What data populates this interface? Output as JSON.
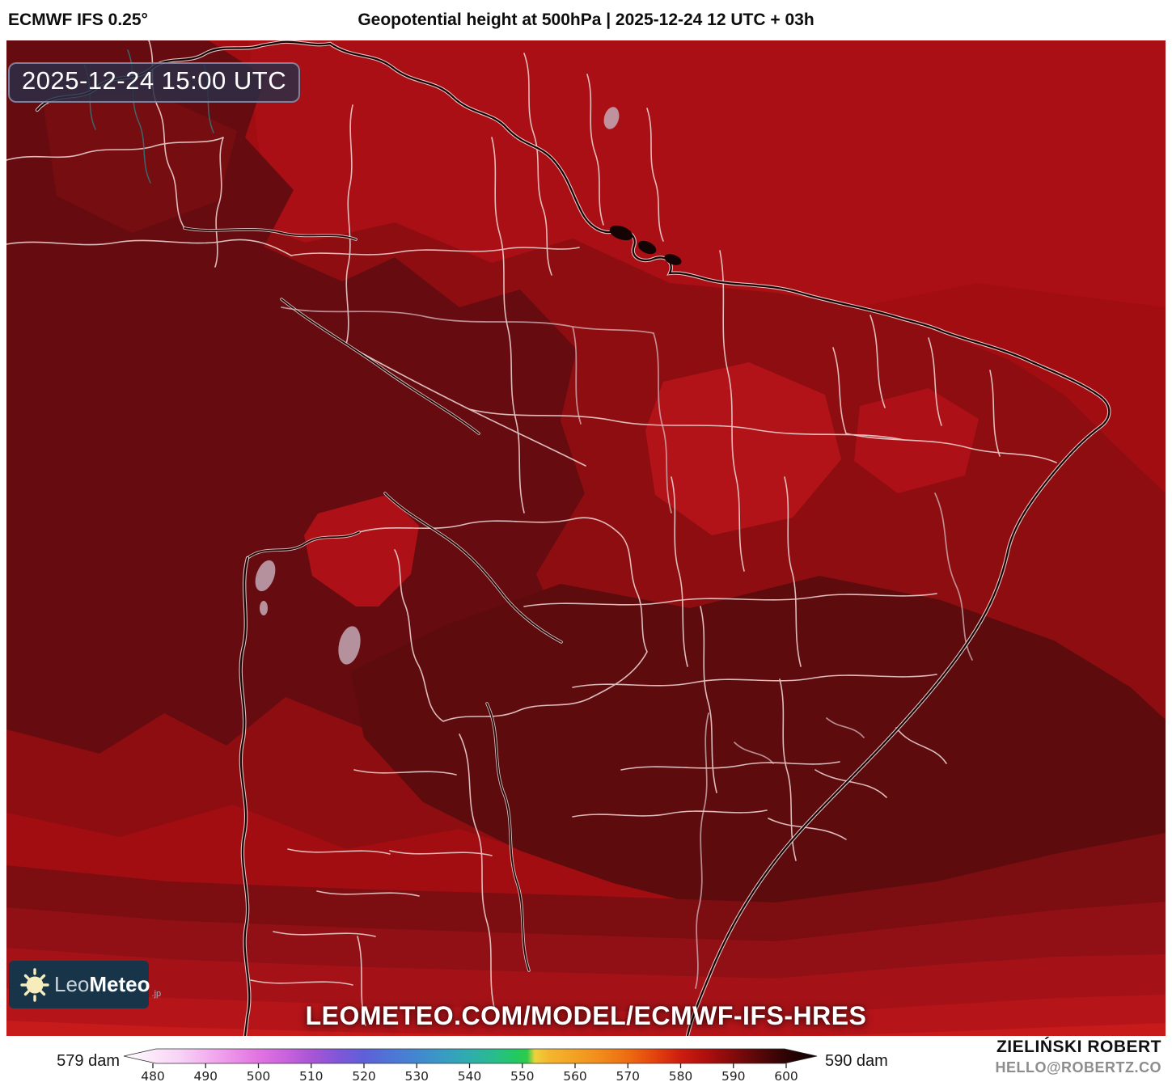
{
  "header": {
    "model": "ECMWF IFS 0.25°",
    "title": "Geopotential height at 500hPa | 2025-12-24 12 UTC + 03h"
  },
  "map": {
    "timestamp": "2025-12-24 15:00 UTC",
    "watermark": "LEOMETEO.COM/MODEL/ECMWF-IFS-HRES",
    "logo": {
      "brand_light": "Leo",
      "brand_bold": "Meteo",
      "tld": ".jp"
    }
  },
  "colorbar": {
    "unit": "dam",
    "min_annotation": "579 dam",
    "max_annotation": "590 dam",
    "ticks": [
      480,
      490,
      500,
      510,
      520,
      530,
      540,
      550,
      560,
      570,
      580,
      590,
      600
    ],
    "stops": [
      {
        "at": 0.0,
        "color": "#ffffff"
      },
      {
        "at": 0.042,
        "color": "#fbe7fa"
      },
      {
        "at": 0.08,
        "color": "#f8d3f6"
      },
      {
        "at": 0.118,
        "color": "#f3b3ef"
      },
      {
        "at": 0.156,
        "color": "#ec92e9"
      },
      {
        "at": 0.194,
        "color": "#e273e2"
      },
      {
        "at": 0.232,
        "color": "#cb63dd"
      },
      {
        "at": 0.27,
        "color": "#a955d6"
      },
      {
        "at": 0.309,
        "color": "#8156d8"
      },
      {
        "at": 0.347,
        "color": "#5e60d8"
      },
      {
        "at": 0.385,
        "color": "#4f75d6"
      },
      {
        "at": 0.423,
        "color": "#4287cf"
      },
      {
        "at": 0.461,
        "color": "#389bc4"
      },
      {
        "at": 0.499,
        "color": "#2fadad"
      },
      {
        "at": 0.537,
        "color": "#28bd8a"
      },
      {
        "at": 0.567,
        "color": "#22c95e"
      },
      {
        "at": 0.582,
        "color": "#2ecb4a"
      },
      {
        "at": 0.593,
        "color": "#edd23c"
      },
      {
        "at": 0.613,
        "color": "#f4b62e"
      },
      {
        "at": 0.651,
        "color": "#f3a124"
      },
      {
        "at": 0.689,
        "color": "#f18a1a"
      },
      {
        "at": 0.727,
        "color": "#ed6c12"
      },
      {
        "at": 0.765,
        "color": "#e4440e"
      },
      {
        "at": 0.803,
        "color": "#cd1d10"
      },
      {
        "at": 0.841,
        "color": "#ad0f0e"
      },
      {
        "at": 0.879,
        "color": "#830a0b"
      },
      {
        "at": 0.917,
        "color": "#570708"
      },
      {
        "at": 0.955,
        "color": "#2e0304"
      },
      {
        "at": 1.0,
        "color": "#0d0101"
      }
    ]
  },
  "credits": {
    "author": "ZIELIŃSKI ROBERT",
    "contact": "HELLO@ROBERTZ.CO"
  },
  "palette": {
    "map_base": "#a20d12",
    "map_top_bright": "#a90f14",
    "map_mid": "#8e0d10",
    "map_dark_west": "#660c10",
    "map_dark_south": "#5e0b0e",
    "map_bright_patch": "#b11318",
    "south_bands": [
      "#7c0d10",
      "#901015",
      "#a41217",
      "#b51419",
      "#c61a1b"
    ],
    "border_line": "#eed4d2",
    "coast_line": "#150404",
    "timestamp_box": "#2a2e46",
    "logo_bg": "#173449"
  }
}
